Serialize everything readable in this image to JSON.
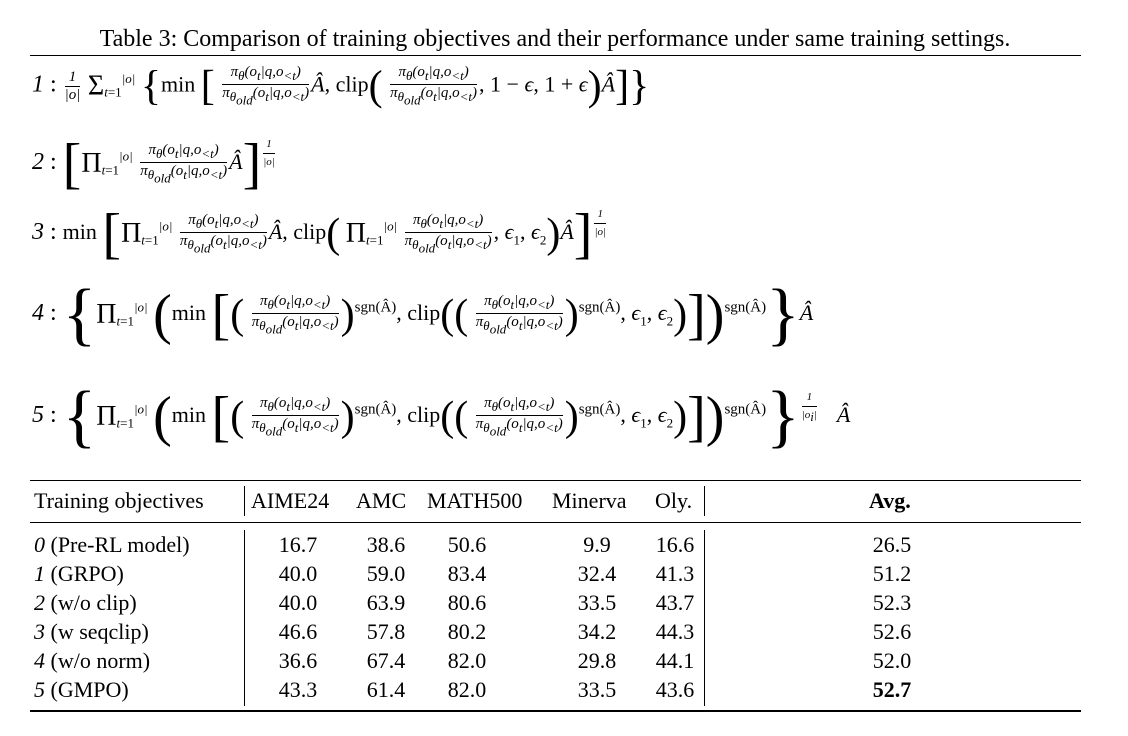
{
  "caption": "Table 3: Comparison of training objectives and their performance under same training settings.",
  "formulas": [
    {
      "num": "1",
      "text": "1/|o| Σ_{t=1}^{|o|} { min [ (π_θ(o_t|q,o_{<t}) / π_θold(o_t|q,o_{<t})) Â, clip( π_θ(o_t|q,o_{<t}) / π_θold(o_t|q,o_{<t}), 1 − ϵ, 1 + ϵ ) Â ] }"
    },
    {
      "num": "2",
      "text": "[ Π_{t=1}^{|o|} (π_θ(o_t|q,o_{<t}) / π_θold(o_t|q,o_{<t})) Â ]^{1/|o|}"
    },
    {
      "num": "3",
      "text": "min [ Π_{t=1}^{|o|} (π_θ(o_t|q,o_{<t}) / π_θold(o_t|q,o_{<t})) Â, clip( Π_{t=1}^{|o|} π_θ(o_t|q,o_{<t}) / π_θold(o_t|q,o_{<t}), ϵ1, ϵ2 ) Â ]^{1/|o|}"
    },
    {
      "num": "4",
      "text": "{ Π_{t=1}^{|o|} ( min [ ( π_θ(o_t|q,o_{<t}) / π_θold(o_t|q,o_{<t}) )^{sgn(Â)}, clip( ( π_θ(o_t|q,o_{<t}) / π_θold(o_t|q,o_{<t}) )^{sgn(Â)}, ϵ1, ϵ2 ) ] ) ^{sgn(Â)} } Â"
    },
    {
      "num": "5",
      "text": "{ Π_{t=1}^{|o|} ( min [ ( π_θ(o_t|q,o_{<t}) / π_θold(o_t|q,o_{<t}) )^{sgn(Â)}, clip( ( π_θ(o_t|q,o_{<t}) / π_θold(o_t|q,o_{<t}) )^{sgn(Â)}, ϵ1, ϵ2 ) ] ) ^{sgn(Â)} }^{1/|o_i|} Â"
    }
  ],
  "table": {
    "headers": [
      "Training objectives",
      "AIME24",
      "AMC",
      "MATH500",
      "Minerva",
      "Oly.",
      "Avg."
    ],
    "rows": [
      {
        "num": "0",
        "name": "(Pre-RL model)",
        "values": [
          "16.7",
          "38.6",
          "50.6",
          "9.9",
          "16.6"
        ],
        "avg": "26.5"
      },
      {
        "num": "1",
        "name": "(GRPO)",
        "values": [
          "40.0",
          "59.0",
          "83.4",
          "32.4",
          "41.3"
        ],
        "avg": "51.2"
      },
      {
        "num": "2",
        "name": "(w/o clip)",
        "values": [
          "40.0",
          "63.9",
          "80.6",
          "33.5",
          "43.7"
        ],
        "avg": "52.3"
      },
      {
        "num": "3",
        "name": "(w seqclip)",
        "values": [
          "46.6",
          "57.8",
          "80.2",
          "34.2",
          "44.3"
        ],
        "avg": "52.6"
      },
      {
        "num": "4",
        "name": "(w/o norm)",
        "values": [
          "36.6",
          "67.4",
          "82.0",
          "29.8",
          "44.1"
        ],
        "avg": "52.0"
      },
      {
        "num": "5",
        "name": "(GMPO)",
        "values": [
          "43.3",
          "61.4",
          "82.0",
          "33.5",
          "43.6"
        ],
        "avg": "52.7"
      }
    ],
    "best_avg": "52.7"
  }
}
